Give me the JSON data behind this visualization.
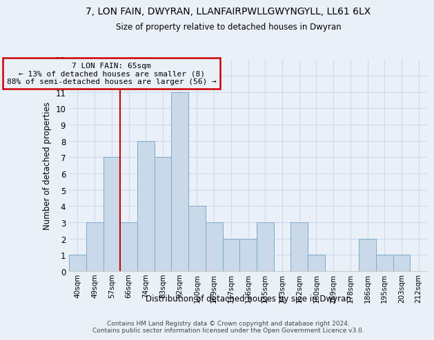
{
  "title": "7, LON FAIN, DWYRAN, LLANFAIRPWLLGWYNGYLL, LL61 6LX",
  "subtitle": "Size of property relative to detached houses in Dwyran",
  "xlabel": "Distribution of detached houses by size in Dwyran",
  "ylabel": "Number of detached properties",
  "bin_labels": [
    "40sqm",
    "49sqm",
    "57sqm",
    "66sqm",
    "74sqm",
    "83sqm",
    "92sqm",
    "100sqm",
    "109sqm",
    "117sqm",
    "126sqm",
    "135sqm",
    "143sqm",
    "152sqm",
    "160sqm",
    "169sqm",
    "178sqm",
    "186sqm",
    "195sqm",
    "203sqm",
    "212sqm"
  ],
  "bar_values": [
    1,
    3,
    7,
    3,
    8,
    7,
    11,
    4,
    3,
    2,
    2,
    3,
    0,
    3,
    1,
    0,
    0,
    2,
    1,
    1,
    0
  ],
  "bar_color": "#c9d9ea",
  "bar_edge_color": "#7aaac8",
  "grid_color": "#d0d8ea",
  "vline_x_index": 2.5,
  "vline_color": "#cc0000",
  "annotation_box_text": "7 LON FAIN: 65sqm\n← 13% of detached houses are smaller (8)\n88% of semi-detached houses are larger (56) →",
  "annotation_box_edge_color": "#cc0000",
  "ylim": [
    0,
    13
  ],
  "yticks": [
    0,
    1,
    2,
    3,
    4,
    5,
    6,
    7,
    8,
    9,
    10,
    11,
    12,
    13
  ],
  "footer_text": "Contains HM Land Registry data © Crown copyright and database right 2024.\nContains public sector information licensed under the Open Government Licence v3.0.",
  "background_color": "#eaf0f8"
}
